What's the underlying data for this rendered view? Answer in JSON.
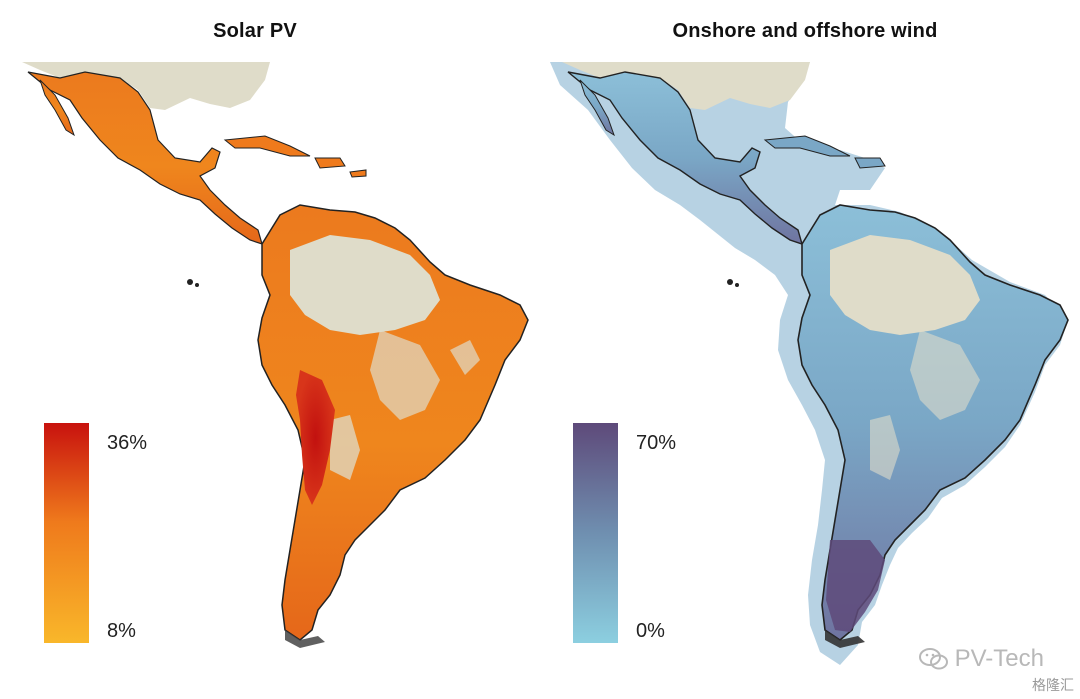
{
  "panels": {
    "solar": {
      "title": "Solar PV",
      "legend_max": "36%",
      "legend_min": "8%",
      "colors": {
        "high": "#c8120e",
        "mid": "#ef7a1c",
        "low": "#f9b72a"
      }
    },
    "wind": {
      "title": "Onshore and offshore wind",
      "legend_max": "70%",
      "legend_min": "0%",
      "colors": {
        "high": "#5e4a7a",
        "mid": "#6f8fb0",
        "low": "#8ccfe0"
      }
    }
  },
  "map_colors": {
    "land_base": "#dfdcc9",
    "outline": "#222222"
  },
  "watermark": {
    "text": "PV-Tech",
    "secondary": "格隆汇",
    "icon": "wechat-icon"
  }
}
